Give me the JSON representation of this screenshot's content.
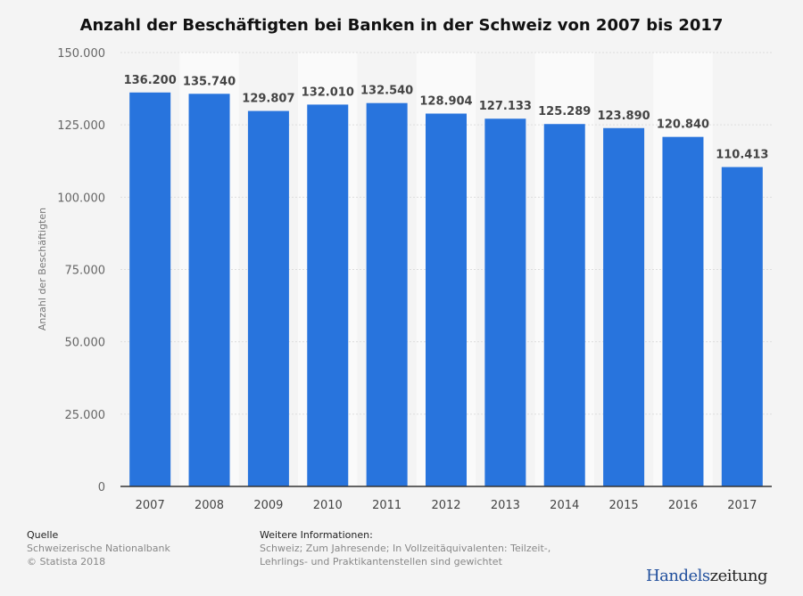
{
  "chart_data": {
    "type": "bar",
    "title": "Anzahl der Beschäftigten bei Banken in der Schweiz von 2007 bis 2017",
    "ylabel": "Anzahl der Beschäftigten",
    "xlabel": "",
    "categories": [
      "2007",
      "2008",
      "2009",
      "2010",
      "2011",
      "2012",
      "2013",
      "2014",
      "2015",
      "2016",
      "2017"
    ],
    "values": [
      136200,
      135740,
      129807,
      132010,
      132540,
      128904,
      127133,
      125289,
      123890,
      120840,
      110413
    ],
    "data_labels": [
      "136.200",
      "135.740",
      "129.807",
      "132.010",
      "132.540",
      "128.904",
      "127.133",
      "125.289",
      "123.890",
      "120.840",
      "110.413"
    ],
    "ylim": [
      0,
      150000
    ],
    "yticks": [
      0,
      25000,
      50000,
      75000,
      100000,
      125000,
      150000
    ],
    "ytick_labels": [
      "0",
      "25.000",
      "50.000",
      "75.000",
      "100.000",
      "125.000",
      "150.000"
    ],
    "grid": true,
    "bar_color": "#2874dd"
  },
  "footer": {
    "source_heading": "Quelle",
    "source_lines": [
      "Schweizerische Nationalbank",
      "© Statista 2018"
    ],
    "info_heading": "Weitere Informationen:",
    "info_lines": [
      "Schweiz; Zum Jahresende; In Vollzeitäquivalenten: Teilzeit-,",
      "Lehrlings- und Praktikantenstellen sind gewichtet"
    ]
  },
  "logo": {
    "part1": "Handels",
    "part2": "zeitung"
  }
}
